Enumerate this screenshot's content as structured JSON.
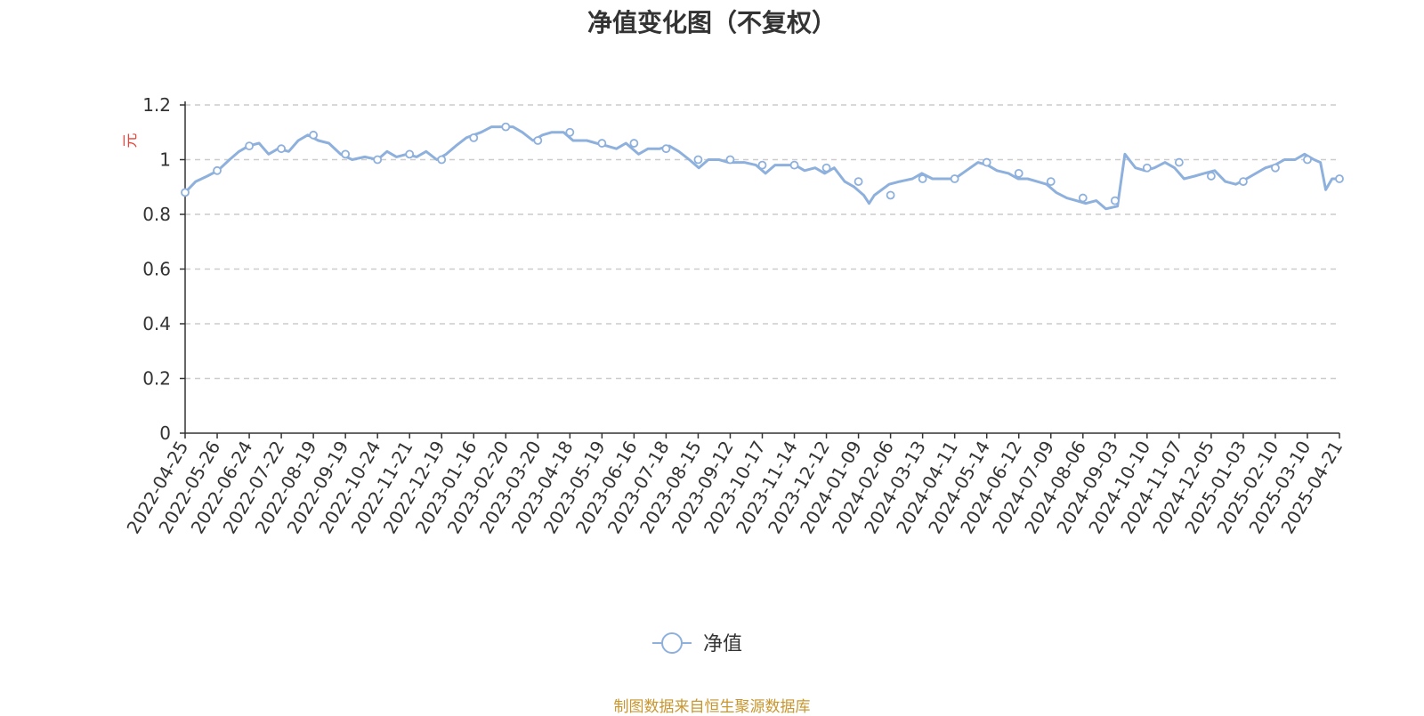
{
  "chart_data": {
    "type": "line",
    "title": "净值变化图（不复权）",
    "ylabel": "元",
    "xlabel": "",
    "ylim": [
      0,
      1.2
    ],
    "yticks": [
      "0",
      "0.2",
      "0.4",
      "0.6",
      "0.8",
      "1",
      "1.2"
    ],
    "grid": true,
    "legend": "bottom-center",
    "categories": [
      "2022-04-25",
      "2022-05-26",
      "2022-06-24",
      "2022-07-22",
      "2022-08-19",
      "2022-09-19",
      "2022-10-24",
      "2022-11-21",
      "2022-12-19",
      "2023-01-16",
      "2023-02-20",
      "2023-03-20",
      "2023-04-18",
      "2023-05-19",
      "2023-06-16",
      "2023-07-18",
      "2023-08-15",
      "2023-09-12",
      "2023-10-17",
      "2023-11-14",
      "2023-12-12",
      "2024-01-09",
      "2024-02-06",
      "2024-03-13",
      "2024-04-11",
      "2024-05-14",
      "2024-06-12",
      "2024-07-09",
      "2024-08-06",
      "2024-09-03",
      "2024-10-10",
      "2024-11-07",
      "2024-12-05",
      "2025-01-03",
      "2025-02-10",
      "2025-03-10",
      "2025-04-21"
    ],
    "series": [
      {
        "name": "净值",
        "color": "#8eb0dd",
        "values": [
          0.88,
          0.96,
          1.05,
          1.04,
          1.09,
          1.02,
          1.0,
          1.02,
          1.0,
          1.08,
          1.12,
          1.07,
          1.1,
          1.06,
          1.06,
          1.04,
          1.0,
          1.0,
          0.98,
          0.98,
          0.97,
          0.92,
          0.87,
          0.93,
          0.93,
          0.99,
          0.95,
          0.92,
          0.86,
          0.85,
          0.97,
          0.99,
          0.94,
          0.92,
          0.97,
          1.0,
          0.93
        ],
        "detail": [
          {
            "x": "2022-04-25",
            "y": 0.88
          },
          {
            "x": "2022-05-05",
            "y": 0.92
          },
          {
            "x": "2022-05-16",
            "y": 0.94
          },
          {
            "x": "2022-05-26",
            "y": 0.96
          },
          {
            "x": "2022-06-06",
            "y": 1.0
          },
          {
            "x": "2022-06-15",
            "y": 1.03
          },
          {
            "x": "2022-06-24",
            "y": 1.05
          },
          {
            "x": "2022-07-04",
            "y": 1.06
          },
          {
            "x": "2022-07-13",
            "y": 1.02
          },
          {
            "x": "2022-07-22",
            "y": 1.04
          },
          {
            "x": "2022-08-01",
            "y": 1.03
          },
          {
            "x": "2022-08-10",
            "y": 1.07
          },
          {
            "x": "2022-08-19",
            "y": 1.09
          },
          {
            "x": "2022-08-29",
            "y": 1.07
          },
          {
            "x": "2022-09-08",
            "y": 1.06
          },
          {
            "x": "2022-09-19",
            "y": 1.02
          },
          {
            "x": "2022-09-30",
            "y": 1.0
          },
          {
            "x": "2022-10-12",
            "y": 1.01
          },
          {
            "x": "2022-10-24",
            "y": 1.0
          },
          {
            "x": "2022-11-02",
            "y": 1.03
          },
          {
            "x": "2022-11-11",
            "y": 1.01
          },
          {
            "x": "2022-11-21",
            "y": 1.02
          },
          {
            "x": "2022-11-30",
            "y": 1.01
          },
          {
            "x": "2022-12-09",
            "y": 1.03
          },
          {
            "x": "2022-12-19",
            "y": 1.0
          },
          {
            "x": "2022-12-28",
            "y": 1.02
          },
          {
            "x": "2023-01-06",
            "y": 1.05
          },
          {
            "x": "2023-01-16",
            "y": 1.08
          },
          {
            "x": "2023-01-30",
            "y": 1.1
          },
          {
            "x": "2023-02-09",
            "y": 1.12
          },
          {
            "x": "2023-02-20",
            "y": 1.12
          },
          {
            "x": "2023-03-01",
            "y": 1.12
          },
          {
            "x": "2023-03-10",
            "y": 1.1
          },
          {
            "x": "2023-03-20",
            "y": 1.07
          },
          {
            "x": "2023-03-29",
            "y": 1.09
          },
          {
            "x": "2023-04-07",
            "y": 1.1
          },
          {
            "x": "2023-04-18",
            "y": 1.1
          },
          {
            "x": "2023-04-27",
            "y": 1.07
          },
          {
            "x": "2023-05-10",
            "y": 1.07
          },
          {
            "x": "2023-05-19",
            "y": 1.06
          },
          {
            "x": "2023-05-29",
            "y": 1.05
          },
          {
            "x": "2023-06-07",
            "y": 1.04
          },
          {
            "x": "2023-06-16",
            "y": 1.06
          },
          {
            "x": "2023-06-28",
            "y": 1.02
          },
          {
            "x": "2023-07-07",
            "y": 1.04
          },
          {
            "x": "2023-07-18",
            "y": 1.04
          },
          {
            "x": "2023-07-27",
            "y": 1.05
          },
          {
            "x": "2023-08-05",
            "y": 1.03
          },
          {
            "x": "2023-08-15",
            "y": 1.0
          },
          {
            "x": "2023-08-24",
            "y": 0.97
          },
          {
            "x": "2023-09-02",
            "y": 1.0
          },
          {
            "x": "2023-09-12",
            "y": 1.0
          },
          {
            "x": "2023-09-21",
            "y": 0.99
          },
          {
            "x": "2023-10-06",
            "y": 0.99
          },
          {
            "x": "2023-10-17",
            "y": 0.98
          },
          {
            "x": "2023-10-26",
            "y": 0.95
          },
          {
            "x": "2023-11-04",
            "y": 0.98
          },
          {
            "x": "2023-11-14",
            "y": 0.98
          },
          {
            "x": "2023-11-23",
            "y": 0.98
          },
          {
            "x": "2023-12-02",
            "y": 0.96
          },
          {
            "x": "2023-12-12",
            "y": 0.97
          },
          {
            "x": "2023-12-21",
            "y": 0.95
          },
          {
            "x": "2023-12-30",
            "y": 0.97
          },
          {
            "x": "2024-01-09",
            "y": 0.92
          },
          {
            "x": "2024-01-18",
            "y": 0.9
          },
          {
            "x": "2024-01-27",
            "y": 0.87
          },
          {
            "x": "2024-02-01",
            "y": 0.84
          },
          {
            "x": "2024-02-06",
            "y": 0.87
          },
          {
            "x": "2024-02-20",
            "y": 0.91
          },
          {
            "x": "2024-03-01",
            "y": 0.92
          },
          {
            "x": "2024-03-13",
            "y": 0.93
          },
          {
            "x": "2024-03-22",
            "y": 0.95
          },
          {
            "x": "2024-04-01",
            "y": 0.93
          },
          {
            "x": "2024-04-11",
            "y": 0.93
          },
          {
            "x": "2024-04-22",
            "y": 0.93
          },
          {
            "x": "2024-05-03",
            "y": 0.96
          },
          {
            "x": "2024-05-14",
            "y": 0.99
          },
          {
            "x": "2024-05-23",
            "y": 0.98
          },
          {
            "x": "2024-06-01",
            "y": 0.96
          },
          {
            "x": "2024-06-12",
            "y": 0.95
          },
          {
            "x": "2024-06-21",
            "y": 0.93
          },
          {
            "x": "2024-06-30",
            "y": 0.93
          },
          {
            "x": "2024-07-09",
            "y": 0.92
          },
          {
            "x": "2024-07-18",
            "y": 0.91
          },
          {
            "x": "2024-07-27",
            "y": 0.88
          },
          {
            "x": "2024-08-06",
            "y": 0.86
          },
          {
            "x": "2024-08-15",
            "y": 0.85
          },
          {
            "x": "2024-08-24",
            "y": 0.84
          },
          {
            "x": "2024-09-03",
            "y": 0.85
          },
          {
            "x": "2024-09-12",
            "y": 0.82
          },
          {
            "x": "2024-09-23",
            "y": 0.83
          },
          {
            "x": "2024-09-30",
            "y": 1.02
          },
          {
            "x": "2024-10-10",
            "y": 0.97
          },
          {
            "x": "2024-10-19",
            "y": 0.96
          },
          {
            "x": "2024-10-28",
            "y": 0.97
          },
          {
            "x": "2024-11-07",
            "y": 0.99
          },
          {
            "x": "2024-11-16",
            "y": 0.97
          },
          {
            "x": "2024-11-25",
            "y": 0.93
          },
          {
            "x": "2024-12-05",
            "y": 0.94
          },
          {
            "x": "2024-12-14",
            "y": 0.95
          },
          {
            "x": "2024-12-24",
            "y": 0.96
          },
          {
            "x": "2025-01-03",
            "y": 0.92
          },
          {
            "x": "2025-01-13",
            "y": 0.91
          },
          {
            "x": "2025-01-23",
            "y": 0.93
          },
          {
            "x": "2025-02-10",
            "y": 0.97
          },
          {
            "x": "2025-02-19",
            "y": 0.98
          },
          {
            "x": "2025-02-28",
            "y": 1.0
          },
          {
            "x": "2025-03-10",
            "y": 1.0
          },
          {
            "x": "2025-03-19",
            "y": 1.02
          },
          {
            "x": "2025-03-28",
            "y": 1.0
          },
          {
            "x": "2025-04-03",
            "y": 0.99
          },
          {
            "x": "2025-04-08",
            "y": 0.89
          },
          {
            "x": "2025-04-14",
            "y": 0.93
          },
          {
            "x": "2025-04-21",
            "y": 0.93
          }
        ]
      }
    ]
  },
  "source_note": "制图数据来自恒生聚源数据库"
}
